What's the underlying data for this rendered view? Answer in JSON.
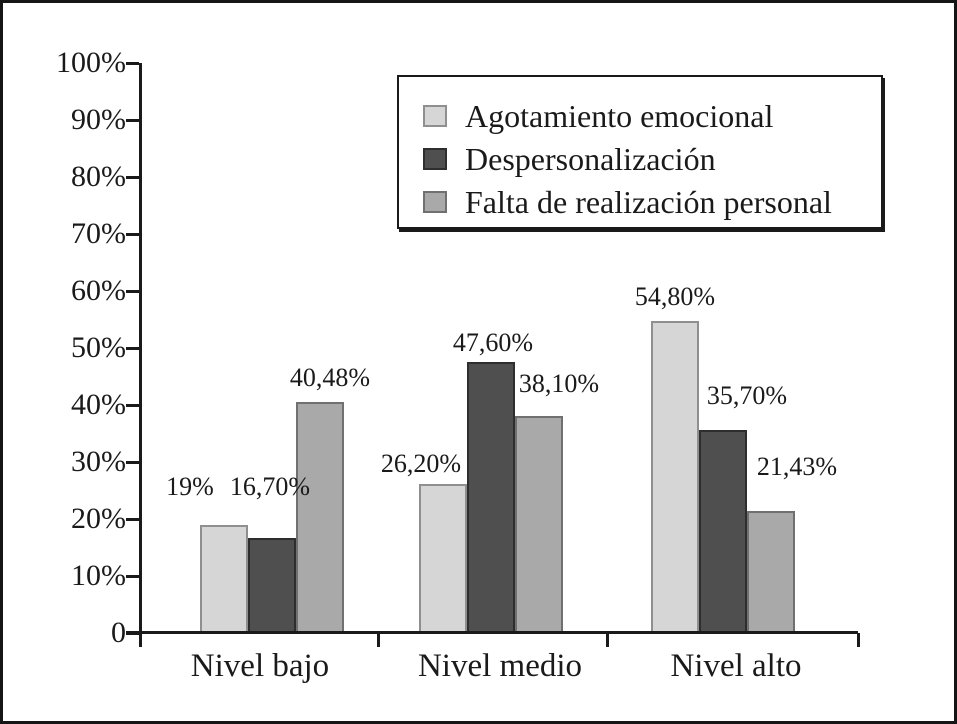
{
  "chart_data": {
    "type": "bar",
    "title": "",
    "xlabel": "",
    "ylabel": "",
    "categories": [
      "Nivel bajo",
      "Nivel medio",
      "Nivel alto"
    ],
    "series": [
      {
        "name": "Agotamiento emocional",
        "color": "#d6d6d6",
        "border_color": "#8f8f8f",
        "values": [
          19,
          26.2,
          54.8
        ],
        "labels": [
          "19%",
          "26,20%",
          "54,80%"
        ]
      },
      {
        "name": "Despersonalización",
        "color": "#4f4f4f",
        "border_color": "#2e2e2e",
        "values": [
          16.7,
          47.6,
          35.7
        ],
        "labels": [
          "16,70%",
          "47,60%",
          "35,70%"
        ]
      },
      {
        "name": "Falta de realización personal",
        "color": "#a9a9a9",
        "border_color": "#707070",
        "values": [
          40.48,
          38.1,
          21.43
        ],
        "labels": [
          "40,48%",
          "38,10%",
          "21,43%"
        ]
      }
    ],
    "y_axis": {
      "min": 0,
      "max": 100,
      "tick_labels": [
        "100%",
        "90%",
        "80%",
        "70%",
        "60%",
        "50%",
        "40%",
        "30%",
        "20%",
        "10%",
        "0"
      ]
    },
    "grid": false,
    "legend_position": "top-right",
    "colors": {
      "axis": "#1a1a1a",
      "text": "#1a1a1a",
      "background": "#ffffff",
      "frame_border": "#151515"
    }
  }
}
